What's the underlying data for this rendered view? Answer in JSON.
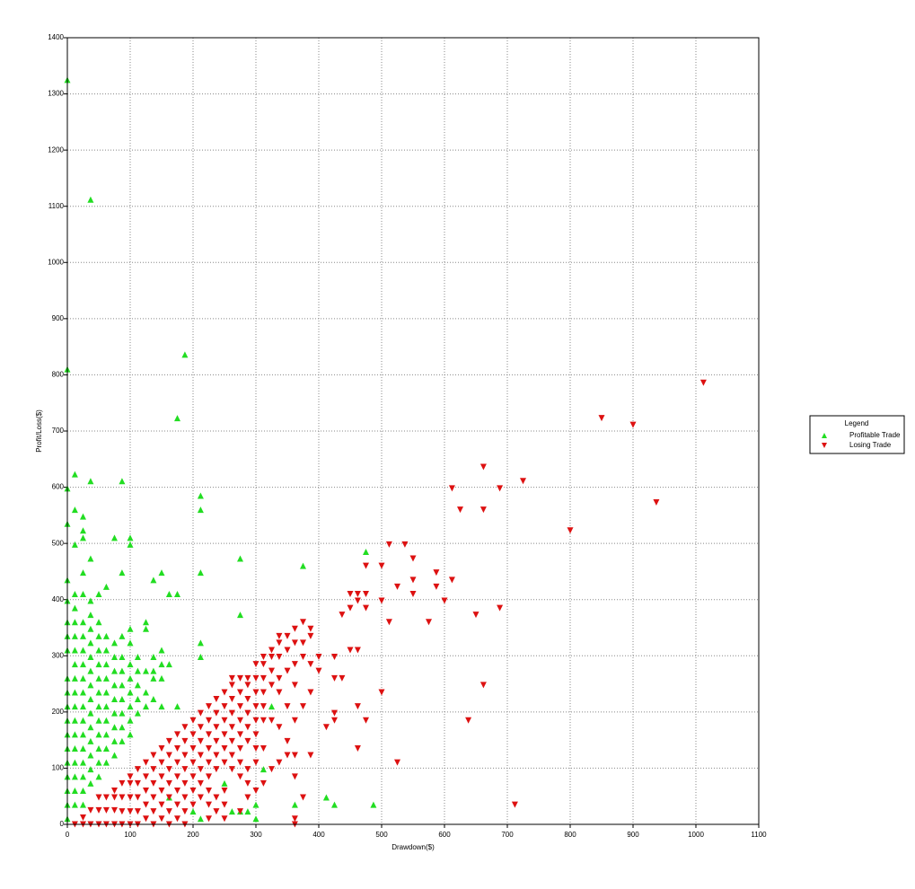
{
  "chart_data": {
    "type": "scatter",
    "xlabel": "Drawdown($)",
    "ylabel": "Profit/Loss($)",
    "xlim": [
      0,
      1100
    ],
    "ylim": [
      0,
      1400
    ],
    "xticks": [
      0,
      100,
      200,
      300,
      400,
      500,
      600,
      700,
      800,
      900,
      1000,
      1100
    ],
    "yticks": [
      0,
      100,
      200,
      300,
      400,
      500,
      600,
      700,
      800,
      900,
      1000,
      1100,
      1200,
      1300,
      1400
    ],
    "grid": true,
    "legend_title": "Legend",
    "legend_position": "right",
    "series": [
      {
        "name": "Profitable Trade",
        "color": "#22dd22",
        "marker": "triangle-up",
        "x": [
          0,
          37,
          0,
          187,
          175,
          0,
          12,
          37,
          87,
          0,
          12,
          25,
          12,
          25,
          25,
          75,
          100,
          100,
          212,
          212,
          275,
          375,
          475,
          37,
          87,
          150,
          137,
          212,
          25,
          12,
          25,
          50,
          62,
          162,
          175,
          275,
          0,
          0,
          0,
          0,
          0,
          0,
          0,
          0,
          0,
          0,
          0,
          0,
          0,
          0,
          0,
          0,
          12,
          12,
          12,
          12,
          12,
          12,
          12,
          12,
          12,
          12,
          12,
          12,
          12,
          12,
          12,
          25,
          25,
          25,
          25,
          25,
          25,
          25,
          25,
          25,
          25,
          25,
          25,
          25,
          25,
          37,
          37,
          37,
          37,
          37,
          37,
          37,
          37,
          37,
          37,
          37,
          37,
          37,
          37,
          50,
          50,
          50,
          50,
          50,
          50,
          50,
          50,
          50,
          50,
          50,
          50,
          62,
          62,
          62,
          62,
          62,
          62,
          62,
          62,
          62,
          62,
          75,
          75,
          75,
          75,
          75,
          75,
          75,
          75,
          75,
          87,
          87,
          87,
          87,
          87,
          87,
          87,
          87,
          100,
          100,
          100,
          100,
          100,
          100,
          100,
          100,
          112,
          112,
          112,
          112,
          112,
          125,
          125,
          125,
          125,
          125,
          137,
          137,
          137,
          137,
          150,
          150,
          150,
          150,
          162,
          162,
          175,
          212,
          212,
          212,
          275,
          300,
          312,
          325,
          362,
          412,
          425,
          487,
          300,
          250,
          262,
          287,
          200
        ],
        "y": [
          1325,
          1112,
          810,
          836,
          723,
          598,
          623,
          611,
          611,
          535,
          560,
          548,
          498,
          510,
          523,
          510,
          510,
          498,
          585,
          560,
          473,
          460,
          485,
          473,
          448,
          448,
          435,
          448,
          448,
          410,
          410,
          410,
          423,
          410,
          410,
          373,
          435,
          398,
          360,
          335,
          310,
          260,
          235,
          210,
          185,
          160,
          135,
          110,
          85,
          60,
          35,
          10,
          385,
          360,
          335,
          310,
          285,
          260,
          235,
          210,
          185,
          160,
          135,
          110,
          85,
          60,
          35,
          360,
          335,
          310,
          285,
          260,
          235,
          210,
          185,
          160,
          135,
          110,
          85,
          60,
          35,
          398,
          373,
          348,
          323,
          298,
          273,
          248,
          223,
          198,
          173,
          148,
          123,
          98,
          73,
          360,
          335,
          310,
          285,
          260,
          235,
          210,
          185,
          160,
          135,
          110,
          85,
          335,
          310,
          285,
          260,
          235,
          210,
          185,
          160,
          135,
          110,
          323,
          298,
          273,
          248,
          223,
          198,
          173,
          148,
          123,
          335,
          298,
          273,
          248,
          223,
          198,
          173,
          148,
          348,
          323,
          285,
          260,
          235,
          210,
          185,
          160,
          298,
          273,
          248,
          223,
          198,
          360,
          348,
          273,
          235,
          210,
          298,
          273,
          260,
          223,
          310,
          285,
          260,
          210,
          285,
          48,
          210,
          323,
          298,
          10,
          23,
          35,
          98,
          210,
          35,
          48,
          35,
          35,
          10,
          73,
          23,
          23,
          23
        ]
      },
      {
        "name": "Losing Trade",
        "color": "#dd1111",
        "marker": "triangle-down",
        "x": [
          1012,
          850,
          900,
          725,
          662,
          612,
          688,
          625,
          662,
          937,
          800,
          512,
          537,
          550,
          475,
          500,
          525,
          550,
          587,
          612,
          587,
          550,
          600,
          500,
          512,
          575,
          650,
          688,
          662,
          638,
          712,
          525,
          462,
          500,
          475,
          475,
          462,
          450,
          462,
          450,
          437,
          475,
          450,
          462,
          462,
          437,
          425,
          400,
          400,
          425,
          412,
          387,
          375,
          362,
          362,
          362,
          350,
          362,
          425,
          425,
          12,
          25,
          25,
          37,
          37,
          50,
          50,
          50,
          62,
          62,
          62,
          75,
          75,
          75,
          75,
          87,
          87,
          87,
          87,
          100,
          100,
          100,
          100,
          100,
          112,
          112,
          112,
          112,
          112,
          125,
          125,
          125,
          125,
          125,
          137,
          137,
          137,
          137,
          137,
          137,
          150,
          150,
          150,
          150,
          150,
          150,
          162,
          162,
          162,
          162,
          162,
          162,
          162,
          175,
          175,
          175,
          175,
          175,
          175,
          175,
          187,
          187,
          187,
          187,
          187,
          187,
          187,
          187,
          200,
          200,
          200,
          200,
          200,
          200,
          200,
          212,
          212,
          212,
          212,
          212,
          212,
          212,
          225,
          225,
          225,
          225,
          225,
          225,
          225,
          225,
          225,
          237,
          237,
          237,
          237,
          237,
          237,
          237,
          237,
          250,
          250,
          250,
          250,
          250,
          250,
          250,
          250,
          250,
          262,
          262,
          262,
          262,
          262,
          262,
          262,
          262,
          275,
          275,
          275,
          275,
          275,
          275,
          275,
          275,
          275,
          287,
          287,
          287,
          287,
          287,
          287,
          287,
          287,
          287,
          300,
          300,
          300,
          300,
          300,
          300,
          300,
          300,
          300,
          312,
          312,
          312,
          312,
          312,
          312,
          312,
          312,
          325,
          325,
          325,
          325,
          325,
          325,
          337,
          337,
          337,
          337,
          337,
          337,
          337,
          350,
          350,
          350,
          350,
          350,
          362,
          362,
          362,
          362,
          362,
          375,
          375,
          375,
          375,
          387,
          387,
          387,
          387
        ],
        "y": [
          786,
          723,
          711,
          611,
          636,
          598,
          598,
          560,
          560,
          573,
          523,
          498,
          498,
          473,
          460,
          460,
          423,
          435,
          448,
          435,
          423,
          410,
          398,
          398,
          360,
          360,
          373,
          385,
          248,
          185,
          35,
          110,
          135,
          235,
          185,
          410,
          410,
          410,
          398,
          385,
          373,
          385,
          310,
          310,
          210,
          260,
          260,
          273,
          298,
          298,
          173,
          123,
          48,
          10,
          85,
          123,
          123,
          0,
          198,
          185,
          0,
          0,
          12,
          0,
          25,
          0,
          25,
          48,
          0,
          25,
          48,
          0,
          25,
          48,
          60,
          0,
          23,
          48,
          73,
          0,
          23,
          48,
          73,
          85,
          0,
          23,
          48,
          73,
          98,
          10,
          35,
          60,
          85,
          110,
          0,
          23,
          48,
          73,
          98,
          123,
          10,
          35,
          60,
          85,
          110,
          135,
          0,
          23,
          48,
          73,
          98,
          123,
          148,
          10,
          35,
          60,
          85,
          110,
          135,
          160,
          0,
          23,
          48,
          73,
          98,
          123,
          148,
          173,
          35,
          60,
          85,
          110,
          135,
          160,
          185,
          48,
          73,
          98,
          123,
          148,
          173,
          198,
          10,
          35,
          60,
          85,
          110,
          135,
          160,
          185,
          210,
          23,
          48,
          98,
          123,
          148,
          173,
          198,
          223,
          10,
          35,
          60,
          110,
          135,
          160,
          185,
          210,
          235,
          98,
          123,
          148,
          173,
          198,
          223,
          248,
          260,
          23,
          85,
          110,
          135,
          160,
          185,
          210,
          235,
          260,
          48,
          73,
          98,
          148,
          173,
          198,
          223,
          248,
          260,
          60,
          110,
          135,
          160,
          185,
          210,
          235,
          260,
          285,
          73,
          135,
          185,
          210,
          235,
          260,
          285,
          298,
          98,
          185,
          248,
          273,
          298,
          310,
          110,
          173,
          235,
          260,
          298,
          323,
          335,
          148,
          210,
          273,
          310,
          335,
          185,
          248,
          285,
          323,
          348,
          210,
          298,
          323,
          360,
          235,
          285,
          335,
          348
        ]
      }
    ]
  }
}
